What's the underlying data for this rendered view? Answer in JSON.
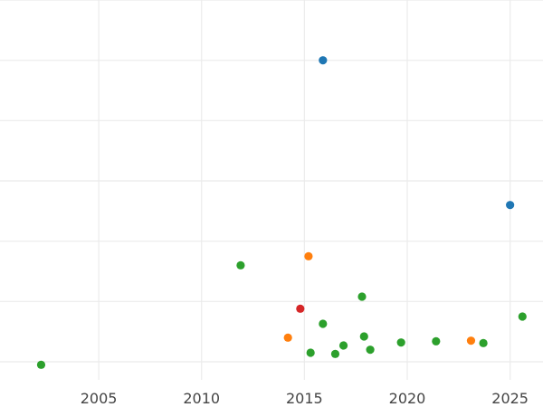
{
  "chart_data": {
    "type": "scatter",
    "title": "",
    "xlabel": "",
    "ylabel": "",
    "grid": true,
    "xlim": [
      2000.2,
      2026.6
    ],
    "ylim": [
      -0.3,
      6.0
    ],
    "x_ticks": [
      2005,
      2010,
      2015,
      2020,
      2025
    ],
    "x_tick_labels": [
      "2005",
      "2010",
      "2015",
      "2020",
      "2025"
    ],
    "y_gridlines": [
      0,
      1,
      2,
      3,
      4,
      5,
      6
    ],
    "series": [
      {
        "color": "#1f77b4",
        "points": [
          {
            "x": 2015.9,
            "y": 5.0
          },
          {
            "x": 2025.0,
            "y": 2.6
          }
        ]
      },
      {
        "color": "#ff7f0e",
        "points": [
          {
            "x": 2015.2,
            "y": 1.75
          },
          {
            "x": 2014.2,
            "y": 0.4
          },
          {
            "x": 2023.1,
            "y": 0.35
          }
        ]
      },
      {
        "color": "#2ca02c",
        "points": [
          {
            "x": 2002.2,
            "y": -0.05
          },
          {
            "x": 2011.9,
            "y": 1.6
          },
          {
            "x": 2017.8,
            "y": 1.08
          },
          {
            "x": 2025.6,
            "y": 0.75
          },
          {
            "x": 2015.9,
            "y": 0.63
          },
          {
            "x": 2017.9,
            "y": 0.42
          },
          {
            "x": 2016.9,
            "y": 0.27
          },
          {
            "x": 2015.3,
            "y": 0.15
          },
          {
            "x": 2016.5,
            "y": 0.13
          },
          {
            "x": 2018.2,
            "y": 0.2
          },
          {
            "x": 2019.7,
            "y": 0.32
          },
          {
            "x": 2021.4,
            "y": 0.34
          },
          {
            "x": 2023.7,
            "y": 0.31
          }
        ]
      },
      {
        "color": "#d62728",
        "points": [
          {
            "x": 2014.8,
            "y": 0.88
          }
        ]
      }
    ]
  }
}
